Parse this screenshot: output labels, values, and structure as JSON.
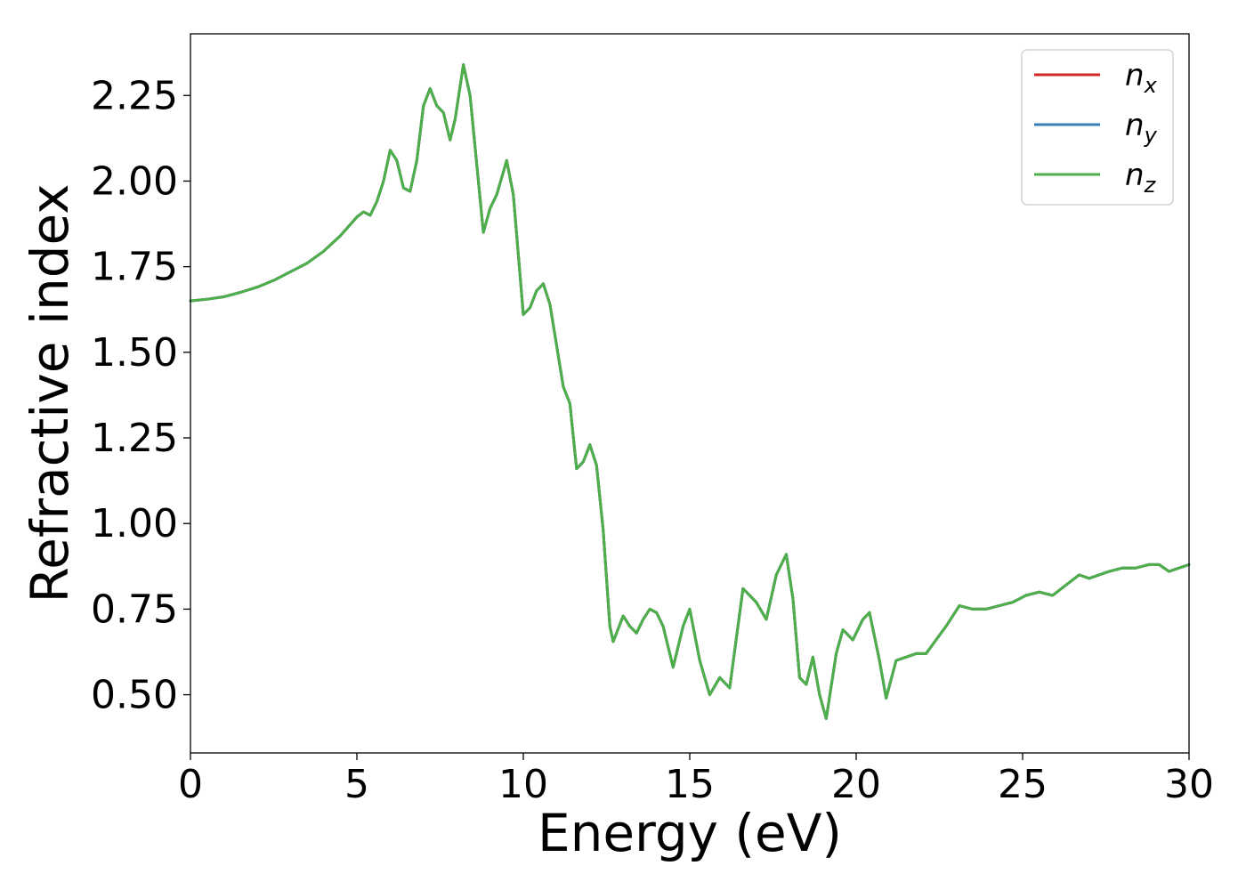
{
  "chart_data": {
    "type": "line",
    "title": "",
    "xlabel": "Energy (eV)",
    "ylabel": "Refractive index",
    "xlim": [
      0,
      30
    ],
    "ylim": [
      0.33,
      2.43
    ],
    "xticks": [
      0,
      5,
      10,
      15,
      20,
      25,
      30
    ],
    "yticks": [
      0.5,
      0.75,
      1.0,
      1.25,
      1.5,
      1.75,
      2.0,
      2.25
    ],
    "xtick_labels": [
      "0",
      "5",
      "10",
      "15",
      "20",
      "25",
      "30"
    ],
    "ytick_labels": [
      "0.50",
      "0.75",
      "1.00",
      "1.25",
      "1.50",
      "1.75",
      "2.00",
      "2.25"
    ],
    "grid": false,
    "legend_position": "top-right",
    "x": [
      0,
      0.5,
      1,
      1.5,
      2,
      2.5,
      3,
      3.5,
      4,
      4.5,
      5,
      5.2,
      5.4,
      5.6,
      5.8,
      6.0,
      6.2,
      6.4,
      6.6,
      6.8,
      7.0,
      7.2,
      7.4,
      7.6,
      7.8,
      7.95,
      8.2,
      8.4,
      8.6,
      8.8,
      9.0,
      9.2,
      9.5,
      9.7,
      10.0,
      10.2,
      10.4,
      10.6,
      10.8,
      11.0,
      11.2,
      11.4,
      11.6,
      11.8,
      12.0,
      12.2,
      12.4,
      12.6,
      12.7,
      12.8,
      13.0,
      13.2,
      13.4,
      13.6,
      13.8,
      14.0,
      14.2,
      14.5,
      14.8,
      15.0,
      15.3,
      15.6,
      15.9,
      16.2,
      16.6,
      17.0,
      17.3,
      17.6,
      17.9,
      18.1,
      18.3,
      18.5,
      18.7,
      18.9,
      19.1,
      19.4,
      19.6,
      19.9,
      20.2,
      20.4,
      20.7,
      20.9,
      21.2,
      21.5,
      21.8,
      22.1,
      22.4,
      22.7,
      23.1,
      23.5,
      23.9,
      24.3,
      24.7,
      25.1,
      25.5,
      25.9,
      26.3,
      26.7,
      27.0,
      27.3,
      27.6,
      28.0,
      28.4,
      28.8,
      29.1,
      29.4,
      29.7,
      30.0
    ],
    "series": [
      {
        "name": "n_x",
        "color": "#d62728",
        "values": [
          1.65,
          1.655,
          1.662,
          1.675,
          1.69,
          1.71,
          1.735,
          1.76,
          1.795,
          1.84,
          1.895,
          1.91,
          1.9,
          1.94,
          2.0,
          2.09,
          2.06,
          1.98,
          1.97,
          2.06,
          2.22,
          2.27,
          2.22,
          2.2,
          2.12,
          2.18,
          2.34,
          2.25,
          2.05,
          1.85,
          1.92,
          1.96,
          2.06,
          1.96,
          1.61,
          1.63,
          1.68,
          1.7,
          1.64,
          1.52,
          1.4,
          1.35,
          1.16,
          1.18,
          1.23,
          1.17,
          0.98,
          0.7,
          0.655,
          0.68,
          0.73,
          0.7,
          0.68,
          0.72,
          0.75,
          0.74,
          0.7,
          0.58,
          0.7,
          0.75,
          0.6,
          0.5,
          0.55,
          0.52,
          0.81,
          0.77,
          0.72,
          0.85,
          0.91,
          0.78,
          0.55,
          0.53,
          0.61,
          0.5,
          0.43,
          0.62,
          0.69,
          0.66,
          0.72,
          0.74,
          0.6,
          0.49,
          0.6,
          0.61,
          0.62,
          0.62,
          0.66,
          0.7,
          0.76,
          0.75,
          0.75,
          0.76,
          0.77,
          0.79,
          0.8,
          0.79,
          0.82,
          0.85,
          0.84,
          0.85,
          0.86,
          0.87,
          0.87,
          0.88,
          0.88,
          0.86,
          0.87,
          0.88
        ]
      },
      {
        "name": "n_y",
        "color": "#377eb8",
        "values": [
          1.65,
          1.655,
          1.662,
          1.675,
          1.69,
          1.71,
          1.735,
          1.76,
          1.795,
          1.84,
          1.895,
          1.91,
          1.9,
          1.94,
          2.0,
          2.09,
          2.06,
          1.98,
          1.97,
          2.06,
          2.22,
          2.27,
          2.22,
          2.2,
          2.12,
          2.18,
          2.34,
          2.25,
          2.05,
          1.85,
          1.92,
          1.96,
          2.06,
          1.96,
          1.61,
          1.63,
          1.68,
          1.7,
          1.64,
          1.52,
          1.4,
          1.35,
          1.16,
          1.18,
          1.23,
          1.17,
          0.98,
          0.7,
          0.655,
          0.68,
          0.73,
          0.7,
          0.68,
          0.72,
          0.75,
          0.74,
          0.7,
          0.58,
          0.7,
          0.75,
          0.6,
          0.5,
          0.55,
          0.52,
          0.81,
          0.77,
          0.72,
          0.85,
          0.91,
          0.78,
          0.55,
          0.53,
          0.61,
          0.5,
          0.43,
          0.62,
          0.69,
          0.66,
          0.72,
          0.74,
          0.6,
          0.49,
          0.6,
          0.61,
          0.62,
          0.62,
          0.66,
          0.7,
          0.76,
          0.75,
          0.75,
          0.76,
          0.77,
          0.79,
          0.8,
          0.79,
          0.82,
          0.85,
          0.84,
          0.85,
          0.86,
          0.87,
          0.87,
          0.88,
          0.88,
          0.86,
          0.87,
          0.88
        ]
      },
      {
        "name": "n_z",
        "color": "#4daf4a",
        "values": [
          1.65,
          1.655,
          1.662,
          1.675,
          1.69,
          1.71,
          1.735,
          1.76,
          1.795,
          1.84,
          1.895,
          1.91,
          1.9,
          1.94,
          2.0,
          2.09,
          2.06,
          1.98,
          1.97,
          2.06,
          2.22,
          2.27,
          2.22,
          2.2,
          2.12,
          2.18,
          2.34,
          2.25,
          2.05,
          1.85,
          1.92,
          1.96,
          2.06,
          1.96,
          1.61,
          1.63,
          1.68,
          1.7,
          1.64,
          1.52,
          1.4,
          1.35,
          1.16,
          1.18,
          1.23,
          1.17,
          0.98,
          0.7,
          0.655,
          0.68,
          0.73,
          0.7,
          0.68,
          0.72,
          0.75,
          0.74,
          0.7,
          0.58,
          0.7,
          0.75,
          0.6,
          0.5,
          0.55,
          0.52,
          0.81,
          0.77,
          0.72,
          0.85,
          0.91,
          0.78,
          0.55,
          0.53,
          0.61,
          0.5,
          0.43,
          0.62,
          0.69,
          0.66,
          0.72,
          0.74,
          0.6,
          0.49,
          0.6,
          0.61,
          0.62,
          0.62,
          0.66,
          0.7,
          0.76,
          0.75,
          0.75,
          0.76,
          0.77,
          0.79,
          0.8,
          0.79,
          0.82,
          0.85,
          0.84,
          0.85,
          0.86,
          0.87,
          0.87,
          0.88,
          0.88,
          0.86,
          0.87,
          0.88
        ]
      }
    ],
    "legend": [
      {
        "base": "n",
        "sub": "x",
        "color": "#d62728"
      },
      {
        "base": "n",
        "sub": "y",
        "color": "#377eb8"
      },
      {
        "base": "n",
        "sub": "z",
        "color": "#4daf4a"
      }
    ]
  }
}
